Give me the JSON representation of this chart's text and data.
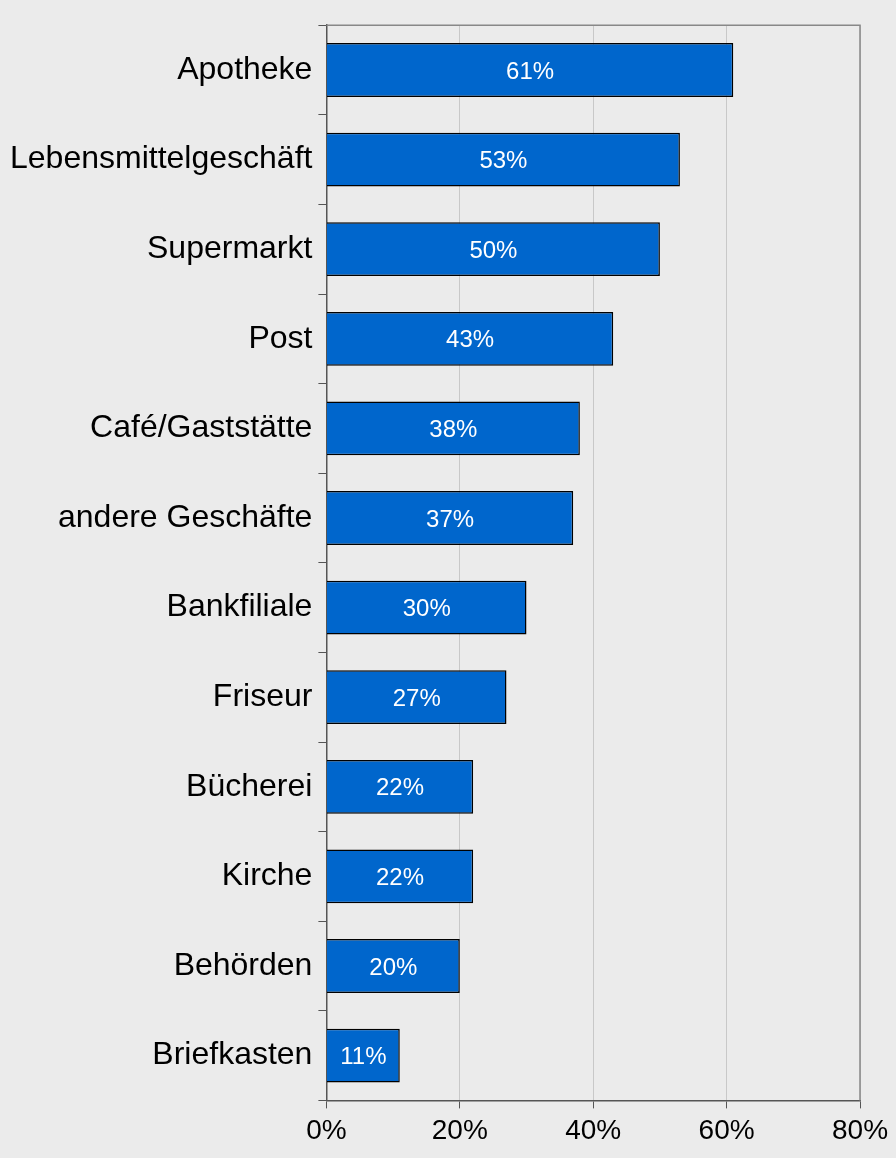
{
  "chart_data": {
    "type": "bar",
    "orientation": "horizontal",
    "categories": [
      "Apotheke",
      "Lebensmittelgeschäft",
      "Supermarkt",
      "Post",
      "Café/Gaststätte",
      "andere Geschäfte",
      "Bankfiliale",
      "Friseur",
      "Bücherei",
      "Kirche",
      "Behörden",
      "Briefkasten"
    ],
    "values": [
      61,
      53,
      50,
      43,
      38,
      37,
      30,
      27,
      22,
      22,
      20,
      11
    ],
    "value_labels": [
      "61%",
      "53%",
      "50%",
      "43%",
      "38%",
      "37%",
      "30%",
      "27%",
      "22%",
      "22%",
      "20%",
      "11%"
    ],
    "color": "#0066cc",
    "xlim": [
      0,
      80
    ],
    "xticks": [
      {
        "value": 0,
        "label": "0%"
      },
      {
        "value": 20,
        "label": "20%"
      },
      {
        "value": 40,
        "label": "40%"
      },
      {
        "value": 60,
        "label": "60%"
      },
      {
        "value": 80,
        "label": "80%"
      }
    ],
    "grid": "x",
    "legend": false
  }
}
